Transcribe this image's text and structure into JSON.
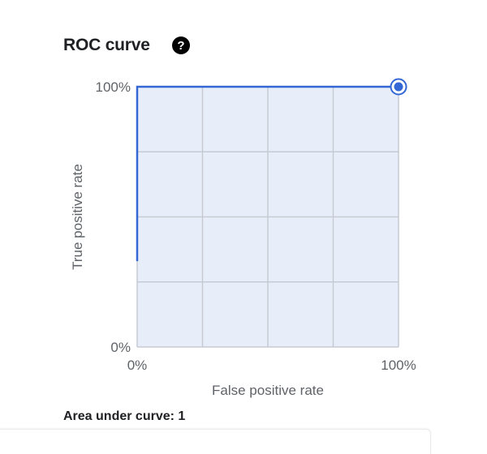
{
  "header": {
    "title": "ROC curve",
    "help_icon": "help-circle-icon"
  },
  "summary": {
    "auc_text": "Area under curve: 1"
  },
  "colors": {
    "curve": "#3367d6",
    "plot_bg": "#e8eef9",
    "grid": "#c6cad2",
    "text": "#202124",
    "axis_text": "#5f6368"
  },
  "chart_data": {
    "type": "line",
    "title": "ROC curve",
    "xlabel": "False positive rate",
    "ylabel": "True positive rate",
    "xlim": [
      0,
      1
    ],
    "ylim": [
      0,
      1
    ],
    "x_ticks": [
      {
        "value": 0,
        "label": "0%"
      },
      {
        "value": 1,
        "label": "100%"
      }
    ],
    "y_ticks": [
      {
        "value": 0,
        "label": "0%"
      },
      {
        "value": 1,
        "label": "100%"
      }
    ],
    "grid": true,
    "grid_divisions": 4,
    "series": [
      {
        "x": [
          0,
          0,
          1
        ],
        "y": [
          0.33,
          1,
          1
        ]
      }
    ],
    "highlight_point": {
      "x": 1,
      "y": 1
    }
  }
}
